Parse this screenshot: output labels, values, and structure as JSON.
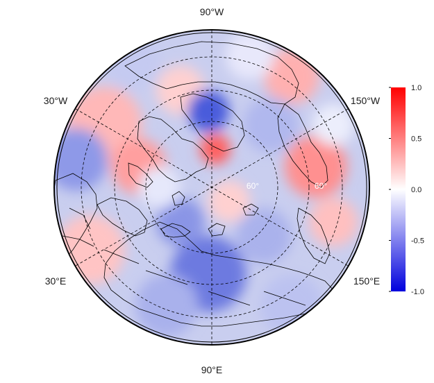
{
  "map": {
    "projection": "north-polar-stereographic",
    "longitude_labels": {
      "top": "90°W",
      "bottom": "90°E",
      "upper_left": "30°W",
      "upper_right": "150°W",
      "lower_left": "30°E",
      "lower_right": "150°E"
    },
    "latitude_labels": [
      "60°",
      "60°"
    ],
    "grid_style": "dashed",
    "colors": {
      "negative": "#0000dd",
      "zero": "#ffffff",
      "positive": "#ff0000",
      "coastline": "#000000"
    }
  },
  "colorbar": {
    "min": -1.0,
    "max": 1.0,
    "ticks": [
      "1.0",
      "0.5",
      "0.0",
      "-0.5",
      "-1.0"
    ]
  }
}
